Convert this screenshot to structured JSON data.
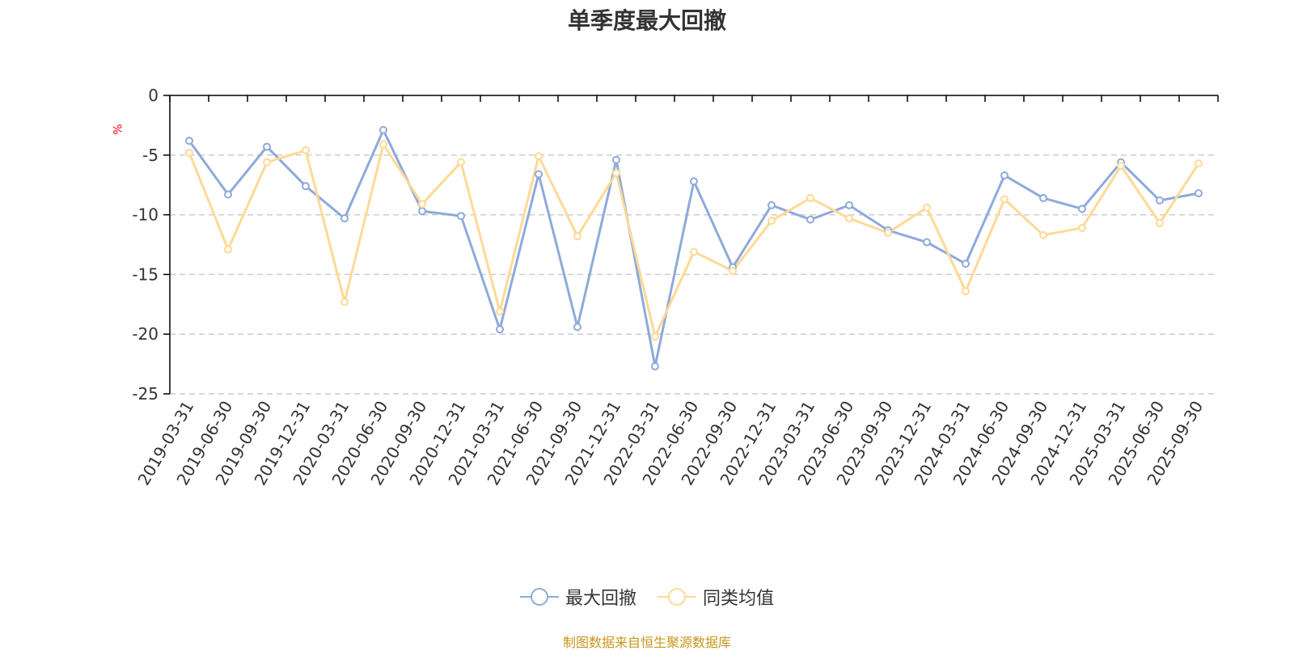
{
  "chart_data": {
    "type": "line",
    "title": "单季度最大回撤",
    "ylabel": "%",
    "ylim": [
      -25,
      0
    ],
    "yticks": [
      0,
      -5,
      -10,
      -15,
      -20,
      -25
    ],
    "grid": true,
    "legend_position": "bottom",
    "categories": [
      "2019-03-31",
      "2019-06-30",
      "2019-09-30",
      "2019-12-31",
      "2020-03-31",
      "2020-06-30",
      "2020-09-30",
      "2020-12-31",
      "2021-03-31",
      "2021-06-30",
      "2021-09-30",
      "2021-12-31",
      "2022-03-31",
      "2022-06-30",
      "2022-09-30",
      "2022-12-31",
      "2023-03-31",
      "2023-06-30",
      "2023-09-30",
      "2023-12-31",
      "2024-03-31",
      "2024-06-30",
      "2024-09-30",
      "2024-12-31",
      "2025-03-31",
      "2025-06-30",
      "2025-09-30"
    ],
    "series": [
      {
        "name": "最大回撤",
        "color": "#8eaadb",
        "values": [
          -3.8,
          -8.3,
          -4.3,
          -7.6,
          -10.3,
          -2.9,
          -9.7,
          -10.1,
          -19.6,
          -6.6,
          -19.4,
          -5.4,
          -22.7,
          -7.2,
          -14.4,
          -9.2,
          -10.4,
          -9.2,
          -11.3,
          -12.3,
          -14.1,
          -6.7,
          -8.6,
          -9.5,
          -5.6,
          -8.8,
          -8.2
        ]
      },
      {
        "name": "同类均值",
        "color": "#ffd995",
        "values": [
          -4.8,
          -12.9,
          -5.6,
          -4.6,
          -17.3,
          -4.1,
          -9.1,
          -5.6,
          -18.1,
          -5.1,
          -11.8,
          -6.5,
          -20.2,
          -13.1,
          -14.7,
          -10.5,
          -8.6,
          -10.3,
          -11.5,
          -9.4,
          -16.4,
          -8.7,
          -11.7,
          -11.1,
          -5.9,
          -10.7,
          -5.7
        ]
      }
    ]
  },
  "source_text": "制图数据来自恒生聚源数据库"
}
